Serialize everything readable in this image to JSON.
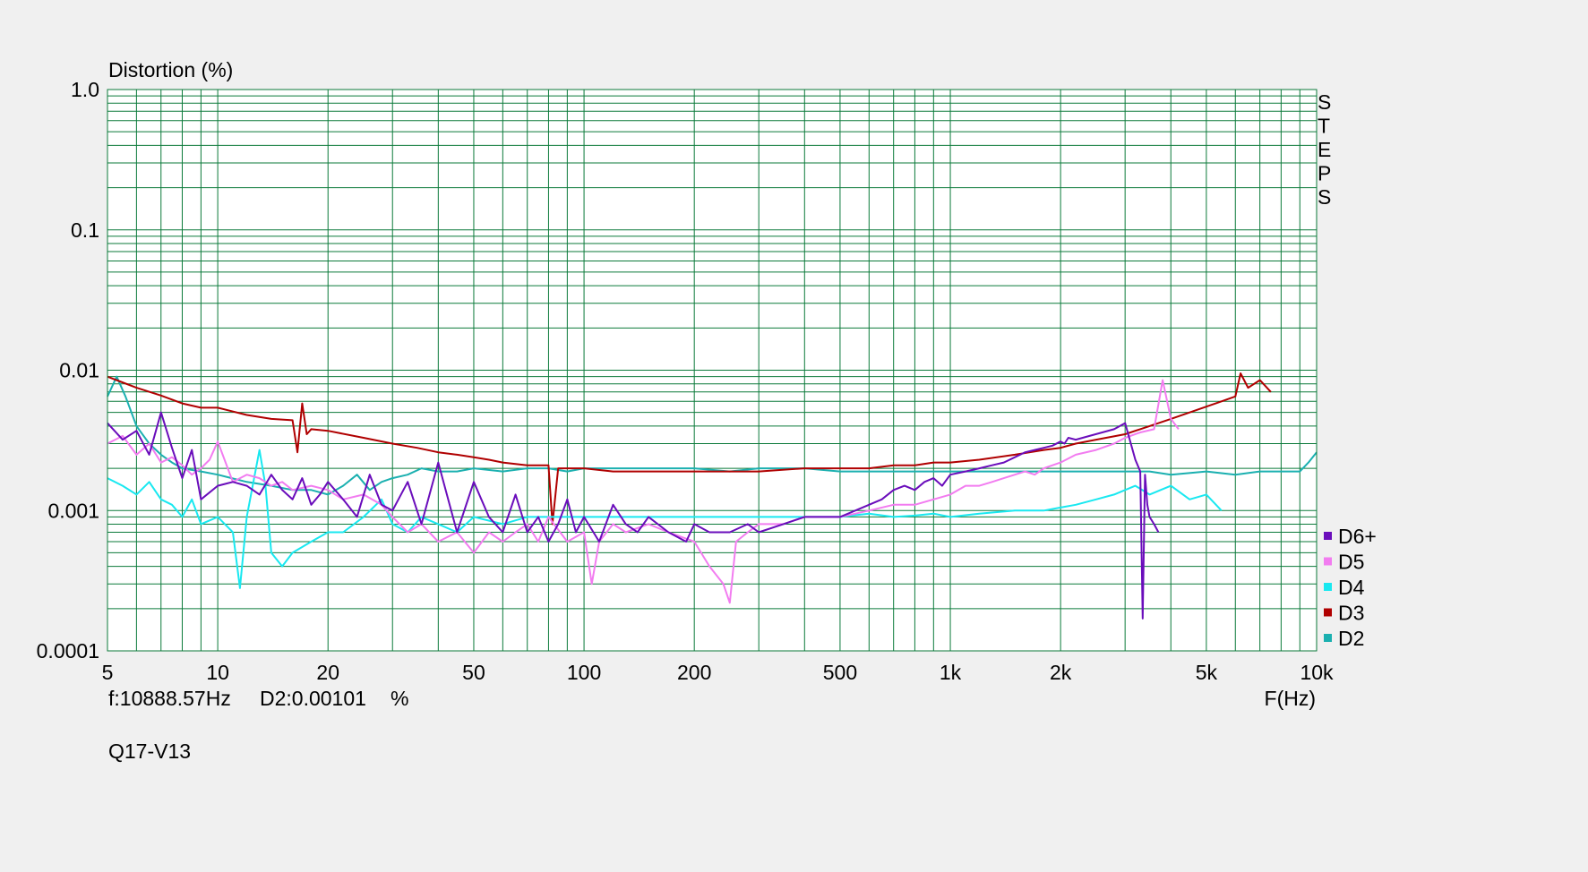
{
  "chart_data": {
    "type": "line",
    "title": "Distortion (%)",
    "xlabel": "F(Hz)",
    "x_scale": "log",
    "y_scale": "log",
    "xlim": [
      5,
      10000
    ],
    "ylim": [
      0.0001,
      1.0
    ],
    "grid": true,
    "legend_position": "right-bottom",
    "x_ticks": [
      {
        "v": 5,
        "label": "5"
      },
      {
        "v": 10,
        "label": "10"
      },
      {
        "v": 20,
        "label": "20"
      },
      {
        "v": 50,
        "label": "50"
      },
      {
        "v": 100,
        "label": "100"
      },
      {
        "v": 200,
        "label": "200"
      },
      {
        "v": 500,
        "label": "500"
      },
      {
        "v": 1000,
        "label": "1k"
      },
      {
        "v": 2000,
        "label": "2k"
      },
      {
        "v": 5000,
        "label": "5k"
      },
      {
        "v": 10000,
        "label": "10k"
      }
    ],
    "y_ticks": [
      {
        "v": 1.0,
        "label": "1.0"
      },
      {
        "v": 0.1,
        "label": "0.1"
      },
      {
        "v": 0.01,
        "label": "0.01"
      },
      {
        "v": 0.001,
        "label": "0.001"
      },
      {
        "v": 0.0001,
        "label": "0.0001"
      }
    ],
    "side_label": [
      "S",
      "T",
      "E",
      "P",
      "S"
    ],
    "readout": {
      "freq": "f:10888.57Hz",
      "value": "D2:0.00101",
      "unit": "%"
    },
    "footer": "Q17-V13",
    "colors": {
      "grid": "#0b7a3a",
      "plot_bg": "#ffffff",
      "page_bg": "#f0f0f0"
    },
    "series": [
      {
        "name": "D6+",
        "color": "#6a0dbb",
        "x": [
          5,
          5.5,
          6,
          6.5,
          7,
          7.5,
          8,
          8.5,
          9,
          10,
          11,
          12,
          13,
          14,
          15,
          16,
          17,
          18,
          19,
          20,
          22,
          24,
          26,
          28,
          30,
          33,
          36,
          40,
          45,
          50,
          55,
          60,
          65,
          70,
          75,
          80,
          85,
          90,
          95,
          100,
          110,
          120,
          130,
          140,
          150,
          170,
          190,
          200,
          220,
          250,
          280,
          300,
          350,
          400,
          450,
          500,
          550,
          600,
          650,
          700,
          750,
          800,
          850,
          900,
          950,
          1000,
          1100,
          1200,
          1300,
          1400,
          1500,
          1600,
          1700,
          1800,
          1900,
          2000,
          2050,
          2100,
          2200,
          2400,
          2600,
          2800,
          3000,
          3200,
          3300,
          3350,
          3400,
          3450,
          3500,
          3600,
          3700
        ],
        "y": [
          0.0042,
          0.0032,
          0.0037,
          0.0025,
          0.005,
          0.0028,
          0.0017,
          0.0027,
          0.0012,
          0.0015,
          0.0016,
          0.0015,
          0.0013,
          0.0018,
          0.0014,
          0.0012,
          0.0017,
          0.0011,
          0.0013,
          0.0016,
          0.0012,
          0.0009,
          0.0018,
          0.0011,
          0.001,
          0.0016,
          0.0008,
          0.0022,
          0.0007,
          0.0016,
          0.0009,
          0.0007,
          0.0013,
          0.0007,
          0.0009,
          0.0006,
          0.0008,
          0.0012,
          0.0007,
          0.0009,
          0.0006,
          0.0011,
          0.0008,
          0.0007,
          0.0009,
          0.0007,
          0.0006,
          0.0008,
          0.0007,
          0.0007,
          0.0008,
          0.0007,
          0.0008,
          0.0009,
          0.0009,
          0.0009,
          0.001,
          0.0011,
          0.0012,
          0.0014,
          0.0015,
          0.0014,
          0.0016,
          0.0017,
          0.0015,
          0.0018,
          0.0019,
          0.002,
          0.0021,
          0.0022,
          0.0024,
          0.0026,
          0.0027,
          0.0028,
          0.0029,
          0.0031,
          0.003,
          0.0033,
          0.0032,
          0.0034,
          0.0036,
          0.0038,
          0.0042,
          0.0023,
          0.0019,
          0.00017,
          0.0018,
          0.0011,
          0.0009,
          0.0008,
          0.0007
        ]
      },
      {
        "name": "D5",
        "color": "#f27cf0",
        "x": [
          5,
          5.5,
          6,
          6.5,
          7,
          7.5,
          8,
          8.5,
          9,
          9.5,
          10,
          11,
          12,
          13,
          14,
          15,
          16,
          18,
          20,
          22,
          25,
          28,
          30,
          33,
          36,
          40,
          45,
          50,
          55,
          60,
          65,
          70,
          75,
          80,
          90,
          100,
          105,
          110,
          120,
          130,
          150,
          170,
          200,
          220,
          240,
          250,
          260,
          280,
          300,
          350,
          400,
          450,
          500,
          550,
          600,
          700,
          800,
          900,
          1000,
          1100,
          1200,
          1300,
          1400,
          1500,
          1600,
          1700,
          1800,
          2000,
          2200,
          2500,
          2800,
          3000,
          3300,
          3600,
          3800,
          4000,
          4200
        ],
        "y": [
          0.003,
          0.0034,
          0.0025,
          0.003,
          0.0022,
          0.0024,
          0.0021,
          0.0018,
          0.002,
          0.0023,
          0.0031,
          0.0016,
          0.0018,
          0.0017,
          0.0015,
          0.0016,
          0.0014,
          0.0015,
          0.0014,
          0.0012,
          0.0013,
          0.0011,
          0.0009,
          0.0007,
          0.0008,
          0.0006,
          0.0007,
          0.0005,
          0.0007,
          0.0006,
          0.0007,
          0.0008,
          0.0006,
          0.0009,
          0.0006,
          0.0007,
          0.0003,
          0.0006,
          0.0008,
          0.0007,
          0.0008,
          0.0007,
          0.0006,
          0.0004,
          0.0003,
          0.00022,
          0.0006,
          0.0007,
          0.0008,
          0.0008,
          0.0009,
          0.0009,
          0.0009,
          0.00095,
          0.001,
          0.0011,
          0.0011,
          0.0012,
          0.0013,
          0.0015,
          0.0015,
          0.0016,
          0.0017,
          0.0018,
          0.0019,
          0.0018,
          0.002,
          0.0022,
          0.0025,
          0.0027,
          0.003,
          0.0033,
          0.0036,
          0.0038,
          0.0085,
          0.0045,
          0.0038
        ]
      },
      {
        "name": "D4",
        "color": "#19e8f0",
        "x": [
          5,
          5.5,
          6,
          6.5,
          7,
          7.5,
          8,
          8.5,
          9,
          10,
          11,
          11.5,
          12,
          13,
          13.5,
          14,
          15,
          16,
          18,
          20,
          22,
          25,
          28,
          30,
          33,
          36,
          40,
          45,
          50,
          60,
          70,
          80,
          90,
          100,
          120,
          150,
          200,
          250,
          300,
          400,
          500,
          600,
          700,
          800,
          900,
          1000,
          1200,
          1500,
          1800,
          2000,
          2200,
          2500,
          2800,
          3000,
          3200,
          3500,
          4000,
          4500,
          5000,
          5500
        ],
        "y": [
          0.0017,
          0.0015,
          0.0013,
          0.0016,
          0.0012,
          0.0011,
          0.0009,
          0.0012,
          0.0008,
          0.0009,
          0.0007,
          0.00028,
          0.0009,
          0.0027,
          0.0015,
          0.0005,
          0.0004,
          0.0005,
          0.0006,
          0.0007,
          0.0007,
          0.0009,
          0.0012,
          0.0008,
          0.0007,
          0.0009,
          0.0008,
          0.0007,
          0.0009,
          0.0008,
          0.0009,
          0.0009,
          0.0009,
          0.0009,
          0.0009,
          0.0009,
          0.0009,
          0.0009,
          0.0009,
          0.0009,
          0.0009,
          0.00095,
          0.0009,
          0.00092,
          0.00095,
          0.0009,
          0.00095,
          0.001,
          0.001,
          0.00105,
          0.0011,
          0.0012,
          0.0013,
          0.0014,
          0.0015,
          0.0013,
          0.0015,
          0.0012,
          0.0013,
          0.001
        ]
      },
      {
        "name": "D3",
        "color": "#b00000",
        "x": [
          5,
          6,
          7,
          8,
          9,
          10,
          12,
          14,
          16,
          16.5,
          17,
          17.5,
          18,
          20,
          25,
          30,
          35,
          40,
          45,
          50,
          55,
          60,
          70,
          80,
          82,
          85,
          90,
          100,
          120,
          150,
          200,
          250,
          300,
          400,
          500,
          600,
          700,
          800,
          900,
          1000,
          1200,
          1500,
          1800,
          2000,
          2200,
          2500,
          3000,
          3500,
          4000,
          4500,
          5000,
          5500,
          6000,
          6200,
          6500,
          7000,
          7500
        ],
        "y": [
          0.009,
          0.0075,
          0.0066,
          0.0058,
          0.0054,
          0.0054,
          0.0048,
          0.0045,
          0.0044,
          0.0026,
          0.0058,
          0.0035,
          0.0038,
          0.0037,
          0.0033,
          0.003,
          0.0028,
          0.0026,
          0.0025,
          0.0024,
          0.0023,
          0.0022,
          0.0021,
          0.0021,
          0.0008,
          0.002,
          0.002,
          0.002,
          0.0019,
          0.0019,
          0.0019,
          0.0019,
          0.0019,
          0.002,
          0.002,
          0.002,
          0.0021,
          0.0021,
          0.0022,
          0.0022,
          0.0023,
          0.0025,
          0.0027,
          0.0028,
          0.003,
          0.0032,
          0.0035,
          0.004,
          0.0045,
          0.005,
          0.0055,
          0.006,
          0.0065,
          0.0095,
          0.0075,
          0.0085,
          0.007
        ]
      },
      {
        "name": "D2",
        "color": "#1bb0b0",
        "x": [
          5,
          5.3,
          5.6,
          6,
          6.5,
          7,
          7.5,
          8,
          9,
          10,
          12,
          14,
          16,
          18,
          20,
          22,
          24,
          26,
          28,
          30,
          33,
          36,
          40,
          45,
          50,
          60,
          70,
          80,
          90,
          100,
          120,
          150,
          200,
          250,
          300,
          400,
          500,
          600,
          700,
          800,
          1000,
          1200,
          1500,
          2000,
          2500,
          3000,
          3500,
          4000,
          5000,
          6000,
          7000,
          8000,
          9000,
          9500,
          10000
        ],
        "y": [
          0.0065,
          0.009,
          0.0065,
          0.004,
          0.003,
          0.0025,
          0.0022,
          0.002,
          0.0019,
          0.0018,
          0.0016,
          0.0015,
          0.0014,
          0.0014,
          0.0013,
          0.0015,
          0.0018,
          0.0014,
          0.0016,
          0.0017,
          0.0018,
          0.002,
          0.0019,
          0.0019,
          0.002,
          0.0019,
          0.002,
          0.002,
          0.0019,
          0.002,
          0.002,
          0.002,
          0.002,
          0.0019,
          0.002,
          0.002,
          0.0019,
          0.0019,
          0.0019,
          0.0019,
          0.0019,
          0.0019,
          0.0019,
          0.0019,
          0.0019,
          0.0019,
          0.0019,
          0.0018,
          0.0019,
          0.0018,
          0.0019,
          0.0019,
          0.0019,
          0.0022,
          0.0026
        ]
      }
    ]
  }
}
